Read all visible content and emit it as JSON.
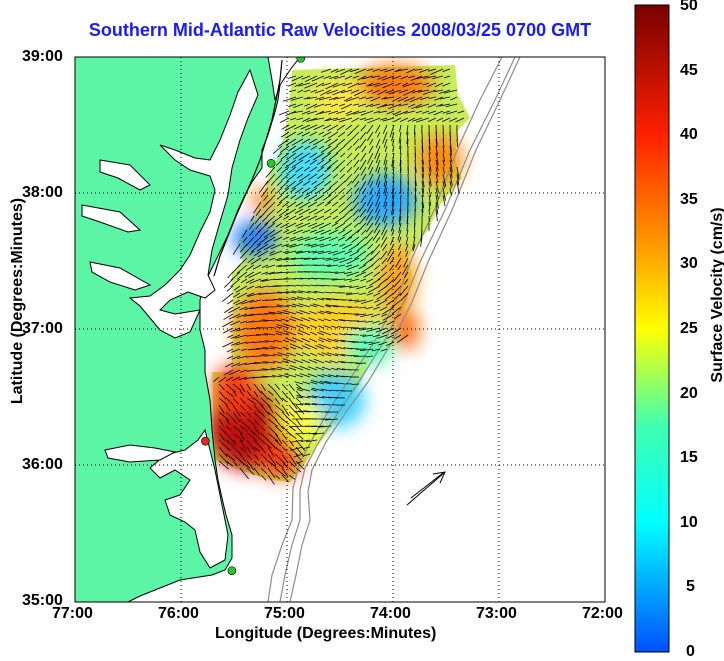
{
  "title": "Southern Mid-Atlantic Raw Velocities 2008/03/25 0700 GMT",
  "xaxis": {
    "label": "Longitude (Degrees:Minutes)",
    "ticks": [
      "77:00",
      "76:00",
      "75:00",
      "74:00",
      "73:00",
      "72:00"
    ]
  },
  "yaxis": {
    "label": "Latitude (Degrees:Minutes)",
    "ticks": [
      "39:00",
      "38:00",
      "37:00",
      "36:00",
      "35:00"
    ]
  },
  "colorbar": {
    "label": "Surface Velocity (cm/s)",
    "ticks": [
      "50",
      "45",
      "40",
      "35",
      "30",
      "25",
      "20",
      "15",
      "10",
      "5",
      "0"
    ],
    "min": 0,
    "max": 50
  },
  "colors": {
    "title": "#1a1aff",
    "land": "#5cf5a6",
    "ocean": "#ffffff",
    "coastline": "#000000",
    "bathymetry": "#8c8c8c",
    "station": "#22cc22",
    "station_alt": "#ee2222"
  },
  "map": {
    "lon_range": [
      -77,
      -72
    ],
    "lat_range": [
      35,
      39
    ],
    "grid": "dotted",
    "stations": [
      {
        "lon": -74.87,
        "lat": 38.99,
        "color": "station"
      },
      {
        "lon": -75.15,
        "lat": 38.22,
        "color": "station"
      },
      {
        "lon": -75.77,
        "lat": 36.18,
        "color": "station_alt"
      },
      {
        "lon": -75.52,
        "lat": 35.23,
        "color": "station"
      }
    ],
    "reference_arrow_cm_s": 50
  }
}
